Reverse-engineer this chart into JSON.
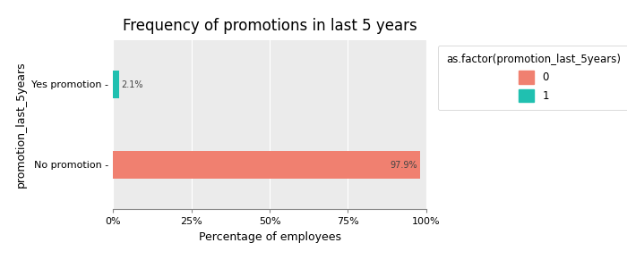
{
  "title": "Frequency of promotions in last 5 years",
  "xlabel": "Percentage of employees",
  "ylabel": "promotion_last_5years",
  "categories": [
    "Yes promotion",
    "No promotion"
  ],
  "values_0": [
    0.0,
    97.9
  ],
  "values_1": [
    2.1,
    0.0
  ],
  "color_0": "#F08070",
  "color_1": "#20C0B0",
  "legend_title": "as.factor(promotion_last_5years)",
  "legend_labels": [
    "0",
    "1"
  ],
  "bar_height": 0.35,
  "xlim": [
    0,
    100
  ],
  "xtick_labels": [
    "0%",
    "25%",
    "50%",
    "75%",
    "100%"
  ],
  "xtick_values": [
    0,
    25,
    50,
    75,
    100
  ],
  "label_1_yes": "2.1%",
  "label_0_no": "97.9%",
  "bg_color": "#EBEBEB",
  "title_fontsize": 12,
  "axis_label_fontsize": 9,
  "tick_fontsize": 8,
  "label_fontsize": 7
}
